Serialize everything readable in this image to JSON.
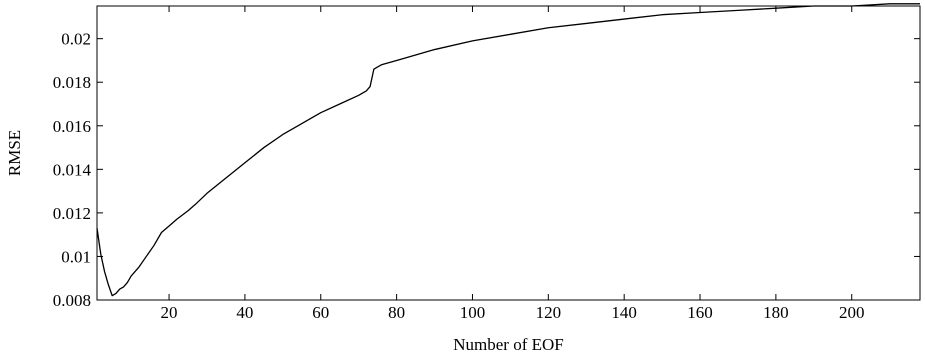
{
  "chart_data": {
    "type": "line",
    "xlabel": "Number of EOF",
    "ylabel": "RMSE",
    "xlim": [
      1,
      218
    ],
    "ylim": [
      0.008,
      0.0215
    ],
    "grid": false,
    "xticks": [
      20,
      40,
      60,
      80,
      100,
      120,
      140,
      160,
      180,
      200
    ],
    "xtick_labels": [
      "20",
      "40",
      "60",
      "80",
      "100",
      "120",
      "140",
      "160",
      "180",
      "200"
    ],
    "yticks": [
      0.008,
      0.01,
      0.012,
      0.014,
      0.016,
      0.018,
      0.02
    ],
    "ytick_labels": [
      "0.008",
      "0.01",
      "0.012",
      "0.014",
      "0.016",
      "0.018",
      "0.02"
    ],
    "series": [
      {
        "x": [
          1,
          2,
          3,
          4,
          5,
          6,
          7,
          8,
          9,
          10,
          12,
          14,
          16,
          18,
          20,
          22,
          25,
          27,
          30,
          35,
          40,
          45,
          50,
          55,
          60,
          65,
          70,
          72,
          73,
          74,
          75,
          76,
          80,
          90,
          100,
          110,
          120,
          130,
          140,
          150,
          160,
          170,
          180,
          190,
          200,
          210,
          218
        ],
        "y": [
          0.0113,
          0.0101,
          0.0093,
          0.0087,
          0.0082,
          0.0083,
          0.0085,
          0.0086,
          0.0088,
          0.0091,
          0.0095,
          0.01,
          0.0105,
          0.0111,
          0.0114,
          0.0117,
          0.0121,
          0.0124,
          0.0129,
          0.0136,
          0.0143,
          0.015,
          0.0156,
          0.0161,
          0.0166,
          0.017,
          0.0174,
          0.0176,
          0.0178,
          0.0186,
          0.0187,
          0.0188,
          0.019,
          0.0195,
          0.0199,
          0.0202,
          0.0205,
          0.0207,
          0.0209,
          0.0211,
          0.0212,
          0.0213,
          0.0214,
          0.0215,
          0.0215,
          0.0216,
          0.0216
        ]
      }
    ]
  }
}
